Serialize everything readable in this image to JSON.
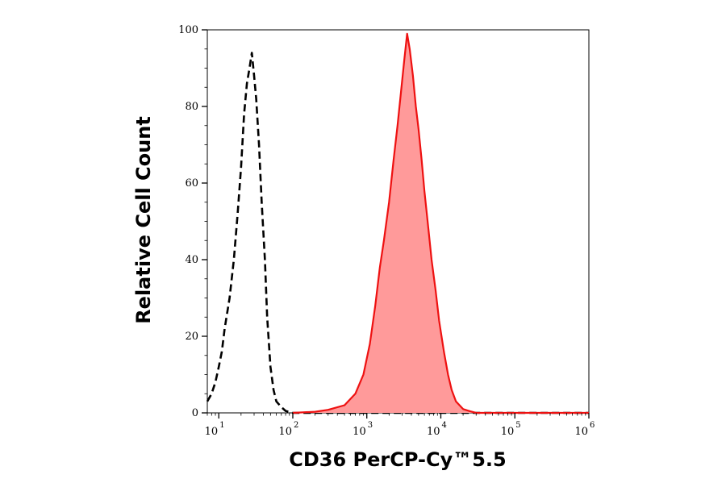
{
  "chart_data": {
    "type": "area",
    "xlabel": "CD36 PerCP-Cy™5.5",
    "ylabel": "Relative Cell Count",
    "x_scale": "log",
    "xlim": [
      7,
      1000000
    ],
    "ylim": [
      0,
      100
    ],
    "x_ticks": [
      {
        "value": 10,
        "base": "10",
        "exp": "1"
      },
      {
        "value": 100,
        "base": "10",
        "exp": "2"
      },
      {
        "value": 1000,
        "base": "10",
        "exp": "3"
      },
      {
        "value": 10000,
        "base": "10",
        "exp": "4"
      },
      {
        "value": 100000,
        "base": "10",
        "exp": "5"
      },
      {
        "value": 1000000,
        "base": "10",
        "exp": "6"
      }
    ],
    "y_ticks": [
      0,
      20,
      40,
      60,
      80,
      100
    ],
    "grid": false,
    "legend": "none",
    "series": [
      {
        "style": "dashed",
        "color": "#000000",
        "filled": false,
        "points": [
          [
            7,
            3
          ],
          [
            8,
            5
          ],
          [
            9,
            8
          ],
          [
            10,
            12
          ],
          [
            11,
            16
          ],
          [
            12,
            22
          ],
          [
            14,
            30
          ],
          [
            16,
            40
          ],
          [
            18,
            52
          ],
          [
            20,
            64
          ],
          [
            22,
            78
          ],
          [
            24,
            86
          ],
          [
            26,
            90
          ],
          [
            28,
            94
          ],
          [
            30,
            88
          ],
          [
            32,
            82
          ],
          [
            35,
            70
          ],
          [
            38,
            55
          ],
          [
            42,
            40
          ],
          [
            45,
            25
          ],
          [
            50,
            12
          ],
          [
            55,
            6
          ],
          [
            60,
            3
          ],
          [
            70,
            1.5
          ],
          [
            80,
            0.5
          ],
          [
            100,
            0
          ],
          [
            1000000,
            0
          ]
        ]
      },
      {
        "style": "solid",
        "color": "#ee1111",
        "filled": true,
        "fill_color": "#ff9a9a",
        "points": [
          [
            100,
            0
          ],
          [
            200,
            0.3
          ],
          [
            300,
            0.8
          ],
          [
            500,
            2
          ],
          [
            700,
            5
          ],
          [
            900,
            10
          ],
          [
            1100,
            18
          ],
          [
            1300,
            28
          ],
          [
            1500,
            38
          ],
          [
            1700,
            45
          ],
          [
            2000,
            55
          ],
          [
            2300,
            66
          ],
          [
            2600,
            75
          ],
          [
            2900,
            84
          ],
          [
            3200,
            92
          ],
          [
            3500,
            99
          ],
          [
            3800,
            95
          ],
          [
            4200,
            88
          ],
          [
            4600,
            80
          ],
          [
            5000,
            74
          ],
          [
            5500,
            66
          ],
          [
            6000,
            58
          ],
          [
            6800,
            48
          ],
          [
            7500,
            40
          ],
          [
            8500,
            32
          ],
          [
            9500,
            24
          ],
          [
            11000,
            16
          ],
          [
            12500,
            10
          ],
          [
            14000,
            6
          ],
          [
            16000,
            3
          ],
          [
            20000,
            1
          ],
          [
            25000,
            0.4
          ],
          [
            30000,
            0
          ],
          [
            1000000,
            0
          ]
        ]
      }
    ]
  }
}
